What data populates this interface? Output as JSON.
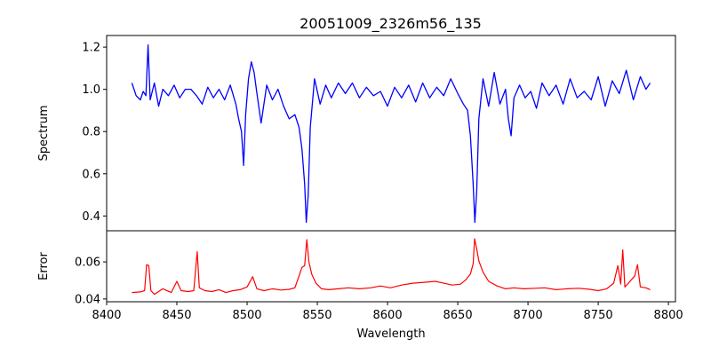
{
  "chart_data": [
    {
      "type": "line",
      "title": "20051009_2326m56_135",
      "xlabel": "",
      "ylabel": "Spectrum",
      "xlim": [
        8400,
        8805
      ],
      "ylim": [
        0.33,
        1.255
      ],
      "yticks": [
        0.4,
        0.6,
        0.8,
        1.0,
        1.2
      ],
      "yticklabels": [
        "0.4",
        "0.6",
        "0.8",
        "1.0",
        "1.2"
      ],
      "grid": false,
      "series": [
        {
          "color": "#0000ff",
          "x": [
            8418,
            8421,
            8424,
            8426,
            8428,
            8429.5,
            8431,
            8434,
            8437,
            8440,
            8444,
            8448,
            8452,
            8456,
            8460,
            8464,
            8468,
            8472,
            8476,
            8480,
            8484,
            8488,
            8492,
            8494,
            8496,
            8497.5,
            8499,
            8501,
            8503,
            8505,
            8507,
            8510,
            8514,
            8518,
            8522,
            8526,
            8530,
            8534,
            8537,
            8539,
            8541,
            8542.1,
            8543.5,
            8545,
            8548,
            8552,
            8556,
            8560,
            8565,
            8570,
            8575,
            8580,
            8585,
            8590,
            8595,
            8600,
            8605,
            8610,
            8615,
            8620,
            8625,
            8630,
            8635,
            8640,
            8645,
            8650,
            8654,
            8657,
            8659,
            8661,
            8662.2,
            8663.5,
            8665,
            8668,
            8672,
            8676,
            8680,
            8684,
            8686,
            8688,
            8690,
            8694,
            8698,
            8702,
            8706,
            8710,
            8715,
            8720,
            8725,
            8730,
            8735,
            8740,
            8745,
            8750,
            8755,
            8760,
            8765,
            8770,
            8775,
            8780,
            8784,
            8787
          ],
          "y": [
            1.03,
            0.97,
            0.95,
            0.99,
            0.97,
            1.21,
            0.95,
            1.03,
            0.92,
            1.0,
            0.97,
            1.02,
            0.96,
            1.0,
            1.0,
            0.97,
            0.93,
            1.01,
            0.96,
            1.0,
            0.95,
            1.02,
            0.93,
            0.86,
            0.8,
            0.64,
            0.88,
            1.05,
            1.13,
            1.08,
            0.98,
            0.84,
            1.02,
            0.95,
            1.0,
            0.92,
            0.86,
            0.88,
            0.82,
            0.72,
            0.55,
            0.37,
            0.5,
            0.82,
            1.05,
            0.93,
            1.02,
            0.96,
            1.03,
            0.98,
            1.03,
            0.96,
            1.01,
            0.97,
            0.99,
            0.92,
            1.01,
            0.96,
            1.02,
            0.94,
            1.03,
            0.96,
            1.01,
            0.97,
            1.05,
            0.98,
            0.93,
            0.9,
            0.78,
            0.55,
            0.37,
            0.52,
            0.86,
            1.05,
            0.92,
            1.08,
            0.93,
            1.0,
            0.86,
            0.78,
            0.96,
            1.02,
            0.96,
            0.99,
            0.91,
            1.03,
            0.97,
            1.02,
            0.93,
            1.05,
            0.96,
            0.99,
            0.95,
            1.06,
            0.92,
            1.04,
            0.98,
            1.09,
            0.95,
            1.06,
            1.0,
            1.03
          ]
        }
      ]
    },
    {
      "type": "line",
      "title": "",
      "xlabel": "Wavelength",
      "ylabel": "Error",
      "xlim": [
        8400,
        8805
      ],
      "ylim": [
        0.0385,
        0.0768
      ],
      "yticks": [
        0.04,
        0.06
      ],
      "yticklabels": [
        "0.04",
        "0.06"
      ],
      "xticks": [
        8400,
        8450,
        8500,
        8550,
        8600,
        8650,
        8700,
        8750,
        8800
      ],
      "xticklabels": [
        "8400",
        "8450",
        "8500",
        "8550",
        "8600",
        "8650",
        "8700",
        "8750",
        "8800"
      ],
      "grid": false,
      "series": [
        {
          "color": "#ff0000",
          "x": [
            8418,
            8424,
            8427,
            8428.5,
            8430,
            8431.5,
            8434,
            8440,
            8446,
            8450,
            8453,
            8458,
            8462,
            8464.5,
            8466,
            8470,
            8475,
            8480,
            8485,
            8490,
            8495,
            8500,
            8504,
            8507,
            8512,
            8518,
            8524,
            8530,
            8534,
            8537,
            8539,
            8541,
            8542.5,
            8544,
            8546,
            8549,
            8553,
            8558,
            8565,
            8572,
            8580,
            8588,
            8595,
            8602,
            8610,
            8618,
            8626,
            8634,
            8640,
            8646,
            8652,
            8656,
            8659,
            8661,
            8662,
            8663.5,
            8665,
            8668,
            8672,
            8678,
            8684,
            8690,
            8697,
            8705,
            8712,
            8720,
            8728,
            8736,
            8744,
            8750,
            8756,
            8761,
            8764,
            8766,
            8767.5,
            8769,
            8772,
            8776,
            8778,
            8780,
            8784,
            8787
          ],
          "y": [
            0.0435,
            0.0438,
            0.0445,
            0.0585,
            0.058,
            0.0445,
            0.0425,
            0.0455,
            0.0435,
            0.0495,
            0.0445,
            0.044,
            0.0445,
            0.0655,
            0.046,
            0.0445,
            0.044,
            0.045,
            0.0435,
            0.0445,
            0.045,
            0.0465,
            0.052,
            0.0455,
            0.0445,
            0.0455,
            0.0448,
            0.0452,
            0.046,
            0.0525,
            0.057,
            0.058,
            0.072,
            0.06,
            0.0535,
            0.0485,
            0.0455,
            0.045,
            0.0455,
            0.046,
            0.0455,
            0.046,
            0.047,
            0.046,
            0.0475,
            0.0485,
            0.049,
            0.0495,
            0.0485,
            0.0475,
            0.048,
            0.0505,
            0.0535,
            0.059,
            0.0725,
            0.067,
            0.0605,
            0.0545,
            0.0495,
            0.047,
            0.0455,
            0.046,
            0.0455,
            0.0458,
            0.046,
            0.045,
            0.0455,
            0.0458,
            0.0452,
            0.0445,
            0.0455,
            0.0485,
            0.058,
            0.048,
            0.0665,
            0.0465,
            0.049,
            0.0525,
            0.0585,
            0.0465,
            0.046,
            0.045
          ]
        }
      ]
    }
  ]
}
